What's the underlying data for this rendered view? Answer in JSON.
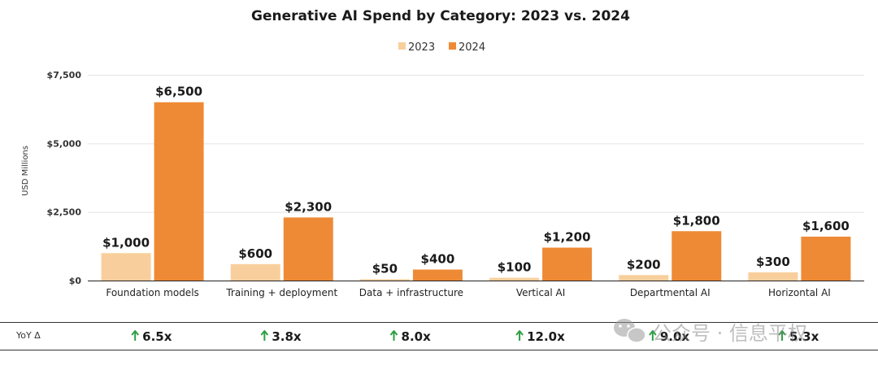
{
  "chart_data": {
    "type": "bar",
    "title": "Generative AI Spend by Category: 2023 vs. 2024",
    "ylabel": "USD Millions",
    "xlabel": "",
    "ylim": [
      0,
      7500
    ],
    "yticks": [
      0,
      2500,
      5000,
      7500
    ],
    "ytick_labels": [
      "$0",
      "$2,500",
      "$5,000",
      "$7,500"
    ],
    "grid": true,
    "legend_position": "top-center",
    "categories": [
      "Foundation models",
      "Training + deployment",
      "Data + infrastructure",
      "Vertical AI",
      "Departmental AI",
      "Horizontal AI"
    ],
    "series": [
      {
        "name": "2023",
        "color": "#f8cf9c",
        "values": [
          1000,
          600,
          50,
          100,
          200,
          300
        ],
        "labels": [
          "$1,000",
          "$600",
          "$50",
          "$100",
          "$200",
          "$300"
        ]
      },
      {
        "name": "2024",
        "color": "#ee8a35",
        "values": [
          6500,
          2300,
          400,
          1200,
          1800,
          1600
        ],
        "labels": [
          "$6,500",
          "$2,300",
          "$400",
          "$1,200",
          "$1,800",
          "$1,600"
        ]
      }
    ],
    "growth": {
      "label": "YoY Δ",
      "arrow_color": "#2e9e45",
      "values": [
        "6.5x",
        "3.8x",
        "8.0x",
        "12.0x",
        "9.0x",
        "5.3x"
      ]
    }
  },
  "watermark": "公众号 · 信息平权"
}
